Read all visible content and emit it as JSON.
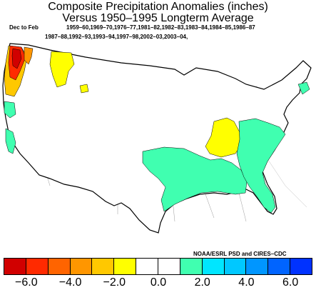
{
  "title_line1": "Composite Precipitation Anomalies (inches)",
  "title_line2": "Versus 1950–1995 Longterm Average",
  "season": "Dec to Feb",
  "years_line1": "1959–60,1969–70,1976–77,1981–82,1982–83,1983–84,1984–85,1986–87",
  "years_line2": "1987–88,1992–93,1993–94,1997–98,2002–03,2003–04,",
  "credit": "NOAA/ESRL PSD and CIRES–CDC",
  "legend": {
    "colors": [
      "#d10000",
      "#ff2a00",
      "#ff6400",
      "#ff9600",
      "#ffc800",
      "#ffff00",
      "#ffffff",
      "#ffffff",
      "#40ffb0",
      "#00e6ff",
      "#00c8ff",
      "#0096ff",
      "#0064ff",
      "#0032ff"
    ],
    "labels": [
      "−6.0",
      "−4.0",
      "−2.0",
      "0.0",
      "2.0",
      "4.0",
      "6.0"
    ]
  },
  "palette": {
    "wet": "#40ffb0",
    "dry_light": "#ffff00",
    "dry_mid": "#ffc800",
    "dry_orange": "#ff9600",
    "dry_red": "#ff2a00",
    "dry_dark": "#d10000"
  }
}
